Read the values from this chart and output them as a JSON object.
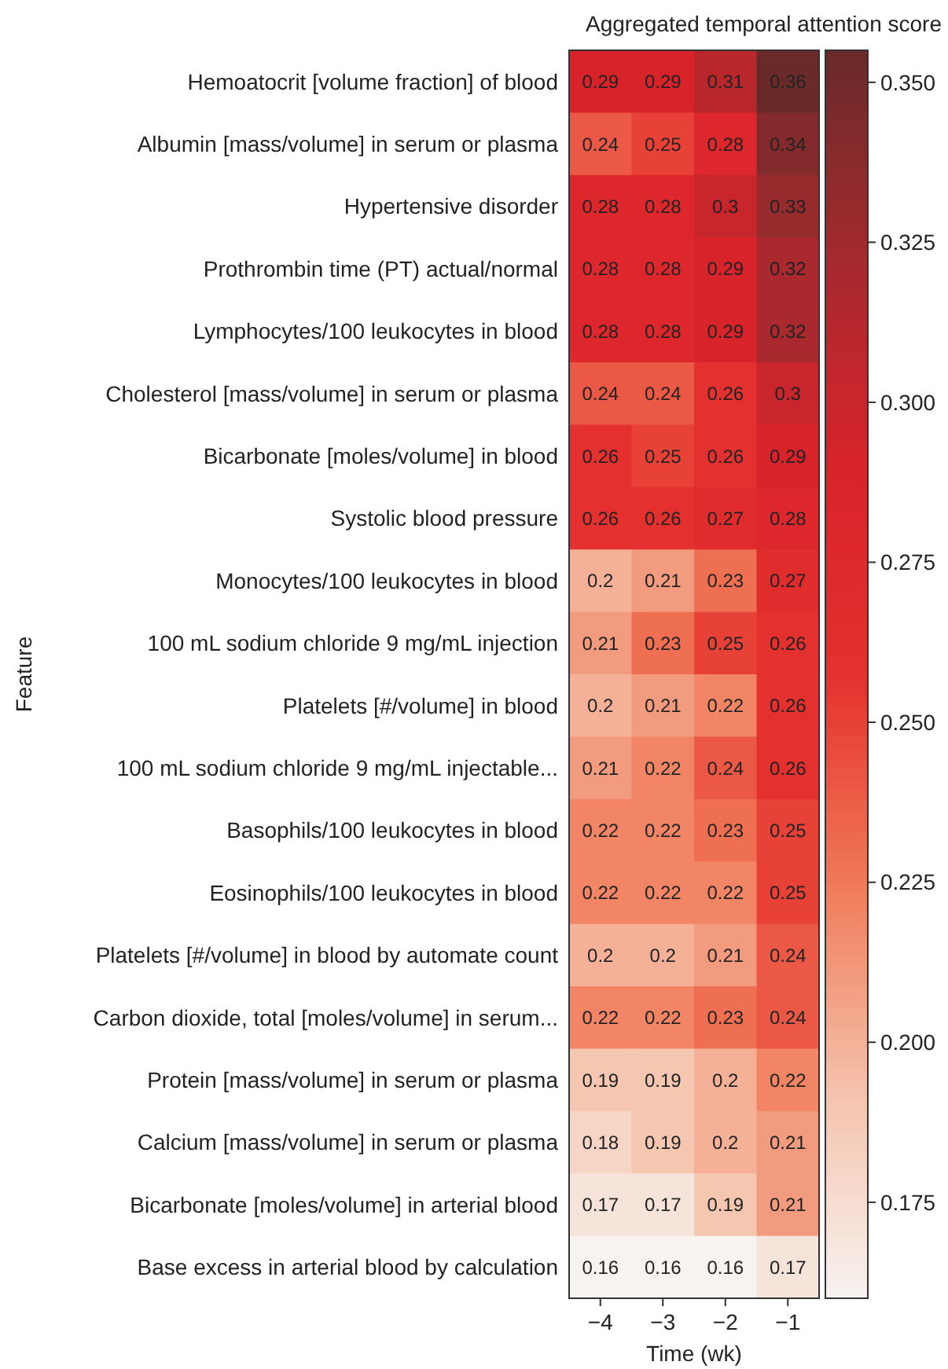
{
  "chart_data": {
    "type": "heatmap",
    "xlabel": "Time (wk)",
    "ylabel": "Feature",
    "clabel": "Aggregated temporal attention score",
    "categories": [
      "−4",
      "−3",
      "−2",
      "−1"
    ],
    "y_categories": [
      "Hemoatocrit [volume fraction] of blood",
      "Albumin [mass/volume] in serum or plasma",
      "Hypertensive disorder",
      "Prothrombin time (PT) actual/normal",
      "Lymphocytes/100 leukocytes in blood",
      "Cholesterol [mass/volume] in serum or plasma",
      "Bicarbonate [moles/volume] in blood",
      "Systolic blood pressure",
      "Monocytes/100 leukocytes in blood",
      "100 mL sodium chloride 9 mg/mL injection",
      "Platelets [#/volume] in blood",
      "100 mL sodium chloride 9 mg/mL injectable...",
      "Basophils/100 leukocytes in blood",
      "Eosinophils/100 leukocytes in blood",
      "Platelets [#/volume] in blood by automate count",
      "Carbon dioxide, total [moles/volume] in serum...",
      "Protein [mass/volume] in serum or plasma",
      "Calcium [mass/volume] in serum or plasma",
      "Bicarbonate [moles/volume] in arterial blood",
      "Base excess in arterial blood by calculation"
    ],
    "cells": [
      [
        0.29,
        0.29,
        0.31,
        0.36
      ],
      [
        0.24,
        0.25,
        0.28,
        0.34
      ],
      [
        0.28,
        0.28,
        0.3,
        0.33
      ],
      [
        0.28,
        0.28,
        0.29,
        0.32
      ],
      [
        0.28,
        0.28,
        0.29,
        0.32
      ],
      [
        0.24,
        0.24,
        0.26,
        0.3
      ],
      [
        0.26,
        0.25,
        0.26,
        0.29
      ],
      [
        0.26,
        0.26,
        0.27,
        0.28
      ],
      [
        0.2,
        0.21,
        0.23,
        0.27
      ],
      [
        0.21,
        0.23,
        0.25,
        0.26
      ],
      [
        0.2,
        0.21,
        0.22,
        0.26
      ],
      [
        0.21,
        0.22,
        0.24,
        0.26
      ],
      [
        0.22,
        0.22,
        0.23,
        0.25
      ],
      [
        0.22,
        0.22,
        0.22,
        0.25
      ],
      [
        0.2,
        0.2,
        0.21,
        0.24
      ],
      [
        0.22,
        0.22,
        0.23,
        0.24
      ],
      [
        0.19,
        0.19,
        0.2,
        0.22
      ],
      [
        0.18,
        0.19,
        0.2,
        0.21
      ],
      [
        0.17,
        0.17,
        0.19,
        0.21
      ],
      [
        0.16,
        0.16,
        0.16,
        0.17
      ]
    ],
    "data_labels": true,
    "clim": [
      0.16,
      0.355
    ],
    "cticks": [
      {
        "value": 0.175,
        "label": "0.175"
      },
      {
        "value": 0.2,
        "label": "0.200"
      },
      {
        "value": 0.225,
        "label": "0.225"
      },
      {
        "value": 0.25,
        "label": "0.250"
      },
      {
        "value": 0.275,
        "label": "0.275"
      },
      {
        "value": 0.3,
        "label": "0.300"
      },
      {
        "value": 0.325,
        "label": "0.325"
      },
      {
        "value": 0.35,
        "label": "0.350"
      }
    ]
  }
}
